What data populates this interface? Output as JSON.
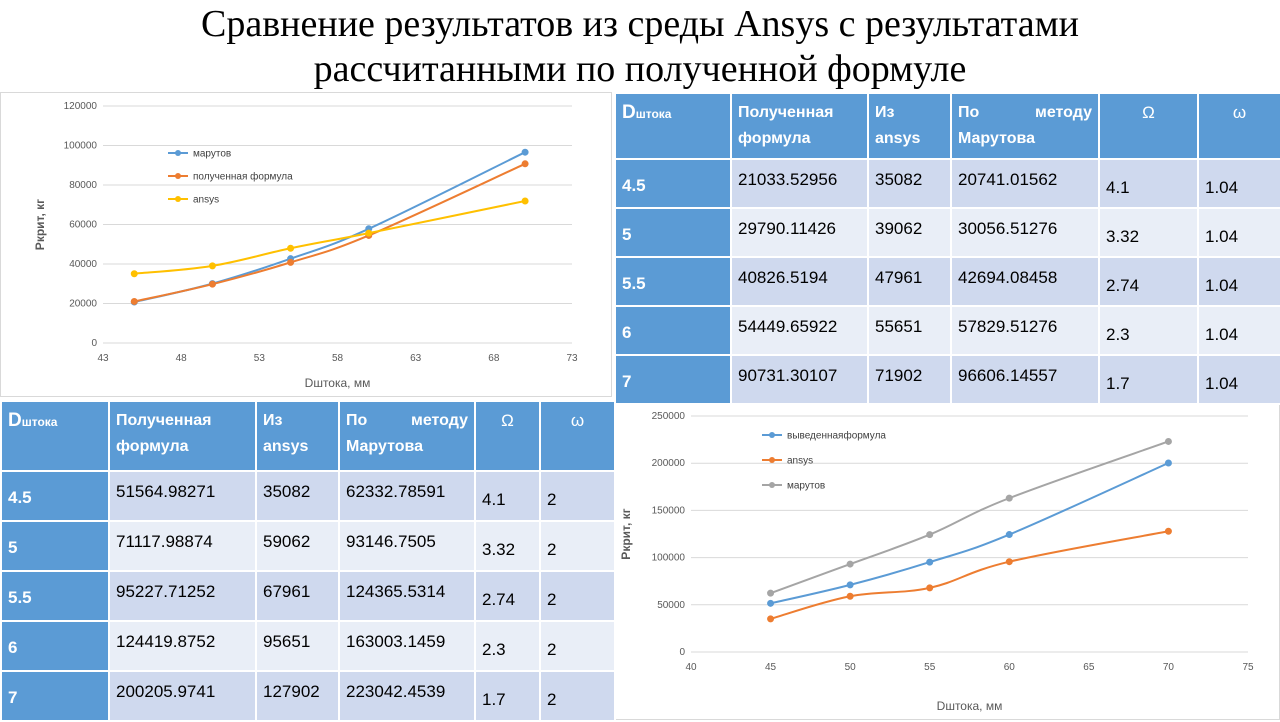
{
  "title": {
    "line1": "Сравнение результатов из среды Ansys с результатами",
    "line2": "рассчитанными по полученной формуле"
  },
  "table_headers": {
    "d_main": "D",
    "d_sub": "штока",
    "formula_line1": "Полученная",
    "formula_line2": "формула",
    "ansys": "Из ansys",
    "marutov_word1": "По",
    "marutov_word2": "методу",
    "marutov_line2": "Марутова",
    "omega_upper": "Ω",
    "omega_lower": "ω"
  },
  "table_top": {
    "rows": [
      {
        "d": "4.5",
        "formula": "21033.52956",
        "ansys": "35082",
        "marutov": "20741.01562",
        "Omega": "4.1",
        "omega": "1.04"
      },
      {
        "d": "5",
        "formula": "29790.11426",
        "ansys": "39062",
        "marutov": "30056.51276",
        "Omega": "3.32",
        "omega": "1.04"
      },
      {
        "d": "5.5",
        "formula": "40826.5194",
        "ansys": "47961",
        "marutov": "42694.08458",
        "Omega": "2.74",
        "omega": "1.04"
      },
      {
        "d": "6",
        "formula": "54449.65922",
        "ansys": "55651",
        "marutov": "57829.51276",
        "Omega": "2.3",
        "omega": "1.04"
      },
      {
        "d": "7",
        "formula": "90731.30107",
        "ansys": "71902",
        "marutov": "96606.14557",
        "Omega": "1.7",
        "omega": "1.04"
      }
    ]
  },
  "table_bottom": {
    "rows": [
      {
        "d": "4.5",
        "formula": "51564.98271",
        "ansys": "35082",
        "marutov": "62332.78591",
        "Omega": "4.1",
        "omega": "2"
      },
      {
        "d": "5",
        "formula": "71117.98874",
        "ansys": "59062",
        "marutov": "93146.7505",
        "Omega": "3.32",
        "omega": "2"
      },
      {
        "d": "5.5",
        "formula": "95227.71252",
        "ansys": "67961",
        "marutov": "124365.5314",
        "Omega": "2.74",
        "omega": "2"
      },
      {
        "d": "6",
        "formula": "124419.8752",
        "ansys": "95651",
        "marutov": "163003.1459",
        "Omega": "2.3",
        "omega": "2"
      },
      {
        "d": "7",
        "formula": "200205.9741",
        "ansys": "127902",
        "marutov": "223042.4539",
        "Omega": "1.7",
        "omega": "2"
      }
    ]
  },
  "chart_data": [
    {
      "type": "line",
      "xlabel": "Dштока, мм",
      "ylabel": "Ркрит, кг",
      "xlim": [
        43,
        73
      ],
      "ylim": [
        0,
        120000
      ],
      "xticks": [
        43,
        48,
        53,
        58,
        63,
        68,
        73
      ],
      "yticks": [
        0,
        20000,
        40000,
        60000,
        80000,
        100000,
        120000
      ],
      "grid": "horizontal",
      "legend_position": "top-left",
      "x": [
        45,
        50,
        55,
        60,
        70
      ],
      "series": [
        {
          "name": "марутов",
          "color": "#5b9bd5",
          "values": [
            20741,
            30057,
            42694,
            57830,
            96606
          ]
        },
        {
          "name": "полученная формула",
          "color": "#ed7d31",
          "values": [
            21034,
            29790,
            40827,
            54450,
            90731
          ]
        },
        {
          "name": "ansys",
          "color": "#ffc000",
          "values": [
            35082,
            39062,
            47961,
            55651,
            71902
          ]
        }
      ]
    },
    {
      "type": "line",
      "xlabel": "Dштока, мм",
      "ylabel": "Ркрит, кг",
      "xlim": [
        40,
        75
      ],
      "ylim": [
        0,
        250000
      ],
      "xticks": [
        40,
        45,
        50,
        55,
        60,
        65,
        70,
        75
      ],
      "yticks": [
        0,
        50000,
        100000,
        150000,
        200000,
        250000
      ],
      "grid": "horizontal",
      "legend_position": "top-left",
      "x": [
        45,
        50,
        55,
        60,
        70
      ],
      "series": [
        {
          "name": "выведеннаяформула",
          "color": "#5b9bd5",
          "values": [
            51565,
            71118,
            95228,
            124420,
            200206
          ]
        },
        {
          "name": "ansys",
          "color": "#ed7d31",
          "values": [
            35082,
            59062,
            67961,
            95651,
            127902
          ]
        },
        {
          "name": "марутов",
          "color": "#a5a5a5",
          "values": [
            62333,
            93147,
            124366,
            163003,
            223042
          ]
        }
      ]
    }
  ]
}
